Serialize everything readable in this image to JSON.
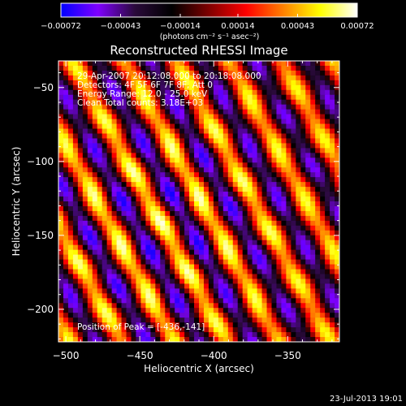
{
  "colors": {
    "background": "#000000",
    "foreground": "#ffffff",
    "colormap": [
      "#0000ff",
      "#7f00ff",
      "#2a0a3a",
      "#000000",
      "#7f0000",
      "#ff0000",
      "#ff8000",
      "#ffff00",
      "#ffffff"
    ]
  },
  "chart_data": {
    "type": "heatmap",
    "title": "Reconstructed RHESSI Image",
    "xlabel": "Heliocentric X (arcsec)",
    "ylabel": "Heliocentric Y (arcsec)",
    "xlim": [
      -505,
      -315
    ],
    "ylim": [
      -222,
      -32
    ],
    "xticks": [
      -500,
      -450,
      -400,
      -350
    ],
    "xtick_labels": [
      "−500",
      "−450",
      "−400",
      "−350"
    ],
    "yticks": [
      -50,
      -100,
      -150,
      -200
    ],
    "ytick_labels": [
      "−50",
      "−100",
      "−150",
      "−200"
    ],
    "colorbar": {
      "min": -0.00072,
      "max": 0.00072,
      "ticks": [
        -0.00072,
        -0.00043,
        -0.00014,
        0.00014,
        0.00043,
        0.00072
      ],
      "tick_labels": [
        "−0.00072",
        "−0.00043",
        "−0.00014",
        "0.00014",
        "0.00043",
        "0.00072"
      ],
      "units": "(photons cm⁻² s⁻¹ asec⁻²)"
    },
    "annotations": [
      "29-Apr-2007 20:12:08.000 to 20:18:08.000",
      "Detectors: 4F 5F 6F 7F 8F, Att 0",
      "Energy Range: 12.0 - 25.0 keV",
      "Clean     Total counts: 3.18E+03"
    ],
    "peak_label": "Position of Peak = [-436,-141]",
    "peak": [
      -436,
      -141
    ],
    "fringe": {
      "direction": [
        1,
        0.55
      ],
      "period_arcsec": 31,
      "envelope_center": [
        -436,
        -141
      ]
    }
  },
  "footer_timestamp": "23-Jul-2013 19:01"
}
